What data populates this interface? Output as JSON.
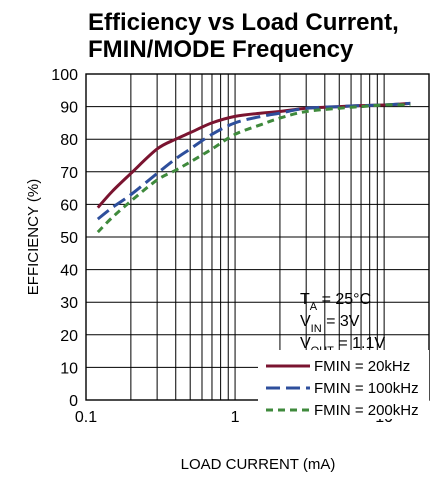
{
  "chart_data": {
    "type": "line",
    "title_lines": [
      "Efficiency vs Load Current,",
      "FMIN/MODE Frequency"
    ],
    "xlabel": "LOAD CURRENT (mA)",
    "ylabel": "EFFICIENCY (%)",
    "xscale": "log",
    "xlim": [
      0.1,
      20
    ],
    "ylim": [
      0,
      100
    ],
    "xticks": [
      0.1,
      1,
      10
    ],
    "xtick_labels": [
      "0.1",
      "1",
      "10"
    ],
    "yticks": [
      0,
      10,
      20,
      30,
      40,
      50,
      60,
      70,
      80,
      90,
      100
    ],
    "ytick_labels": [
      "0",
      "10",
      "20",
      "30",
      "40",
      "50",
      "60",
      "70",
      "80",
      "90",
      "100"
    ],
    "grid": true,
    "legend_position": "bottom-right",
    "annotation": {
      "ta": "TA = 25°C",
      "vin": "VIN = 3V",
      "vout": "VOUT = 1.1V"
    },
    "series": [
      {
        "name": "FMIN = 20kHz",
        "color": "#7a1430",
        "dash": "solid",
        "x": [
          0.12,
          0.15,
          0.2,
          0.3,
          0.4,
          0.5,
          0.7,
          1,
          1.5,
          2,
          3,
          5,
          7,
          10,
          15
        ],
        "y": [
          59,
          64,
          69.5,
          77,
          80,
          82,
          85,
          87,
          88,
          88.5,
          89.5,
          90,
          90.3,
          90.5,
          91
        ]
      },
      {
        "name": "FMIN = 100kHz",
        "color": "#2e4f9c",
        "dash": "long-dash",
        "x": [
          0.12,
          0.15,
          0.2,
          0.3,
          0.4,
          0.5,
          0.7,
          1,
          1.5,
          2,
          3,
          5,
          7,
          10,
          15
        ],
        "y": [
          55.5,
          59,
          63,
          69.5,
          74,
          77,
          81.5,
          85,
          87,
          88,
          89.5,
          90,
          90.3,
          90.5,
          91
        ]
      },
      {
        "name": "FMIN = 200kHz",
        "color": "#3f8a3c",
        "dash": "short-dash",
        "x": [
          0.12,
          0.15,
          0.2,
          0.3,
          0.4,
          0.5,
          0.7,
          1,
          1.5,
          2,
          3,
          5,
          7,
          10,
          15
        ],
        "y": [
          51.5,
          56,
          61,
          67.5,
          70.5,
          73,
          77,
          81.5,
          84.5,
          86.5,
          88.5,
          89.5,
          90,
          90.5,
          90.5
        ]
      }
    ]
  }
}
